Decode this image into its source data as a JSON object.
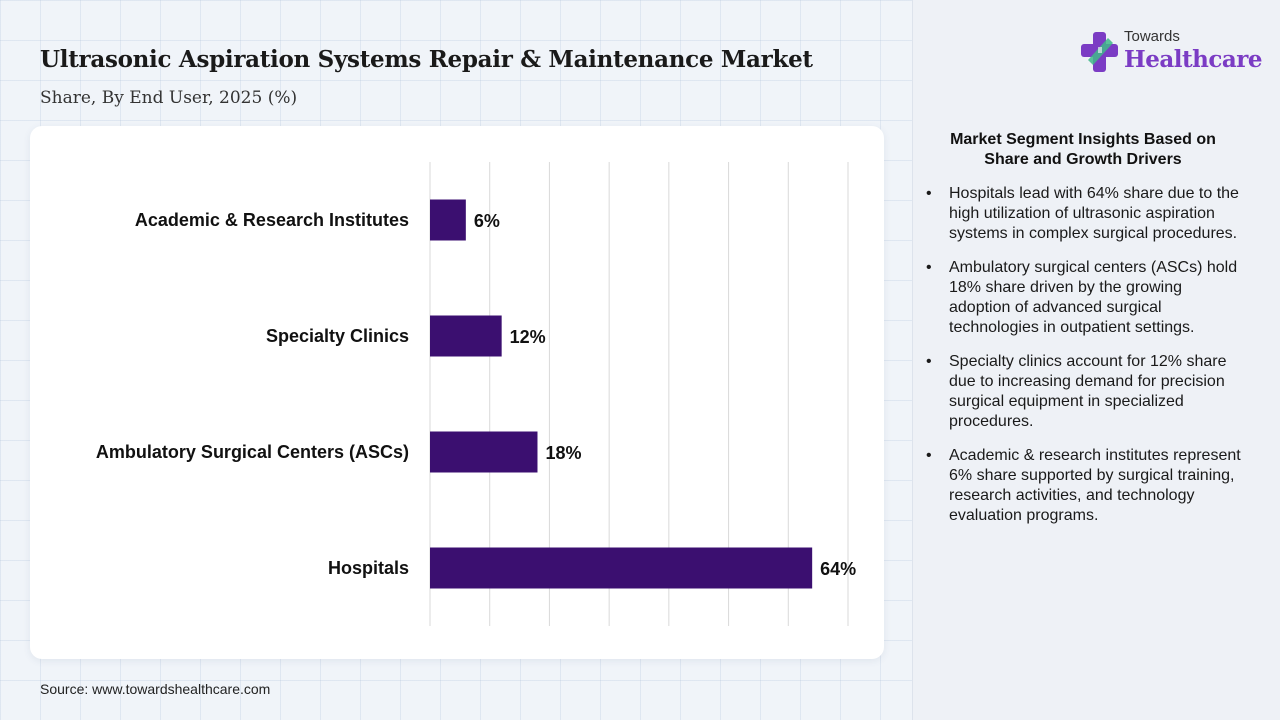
{
  "header": {
    "title": "Ultrasonic Aspiration Systems Repair & Maintenance Market",
    "subtitle": "Share, By End User, 2025 (%)"
  },
  "logo": {
    "small": "Towards",
    "big": "Healthcare"
  },
  "chart_data": {
    "type": "bar",
    "orientation": "horizontal",
    "categories": [
      "Academic & Research Institutes",
      "Specialty Clinics",
      "Ambulatory Surgical Centers (ASCs)",
      "Hospitals"
    ],
    "values": [
      6,
      12,
      18,
      64
    ],
    "value_labels": [
      "6%",
      "12%",
      "18%",
      "64%"
    ],
    "xlim": [
      0,
      70
    ],
    "grid": "vertical",
    "bar_color": "#3b0f70"
  },
  "insights": {
    "title": "Market Segment Insights Based on Share and Growth Drivers",
    "items": [
      "Hospitals lead with 64% share due to the high utilization of ultrasonic aspiration systems in complex surgical procedures.",
      "Ambulatory surgical centers (ASCs) hold 18% share driven by the growing adoption of advanced surgical technologies in outpatient settings.",
      "Specialty clinics account for 12% share due to increasing demand for precision surgical equipment in specialized procedures.",
      "Academic & research institutes represent 6% share supported by surgical training, research activities, and technology evaluation programs."
    ]
  },
  "source": "Source: www.towardshealthcare.com",
  "colors": {
    "accent": "#7b3cc4",
    "bar": "#3b0f70",
    "logo_green": "#3fb98a"
  }
}
